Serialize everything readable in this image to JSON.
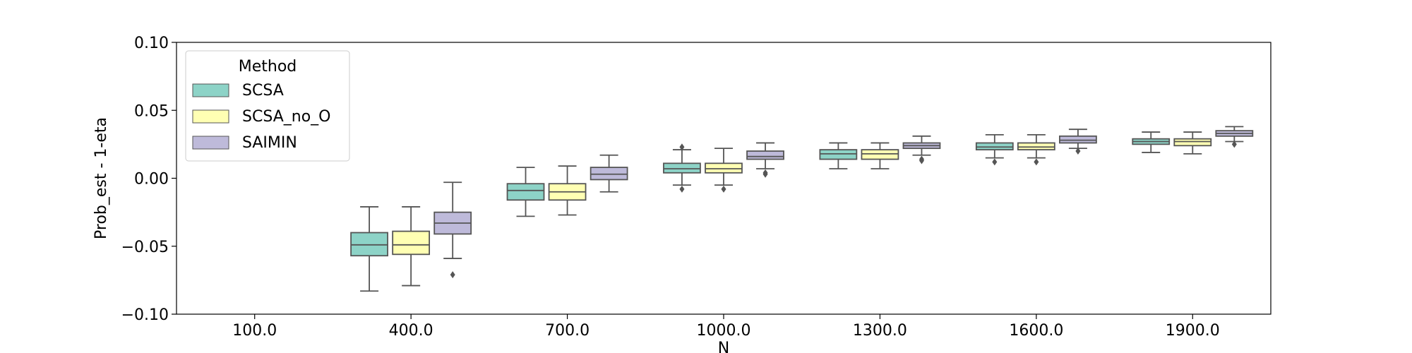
{
  "chart_data": {
    "type": "box",
    "title": "",
    "xlabel": "N",
    "ylabel": "Prob_est - 1-eta",
    "ylim": [
      -0.1,
      0.1
    ],
    "yticks": [
      -0.1,
      -0.05,
      0.0,
      0.05,
      0.1
    ],
    "ytick_labels": [
      "−0.10",
      "−0.05",
      "0.00",
      "0.05",
      "0.10"
    ],
    "categories": [
      "100.0",
      "400.0",
      "700.0",
      "1000.0",
      "1300.0",
      "1600.0",
      "1900.0"
    ],
    "legend": {
      "title": "Method",
      "placement": "upper-left"
    },
    "grid": false,
    "series": [
      {
        "name": "SCSA",
        "color": "#8dd3c7",
        "boxes": [
          null,
          {
            "whislo": -0.083,
            "q1": -0.057,
            "med": -0.049,
            "q3": -0.04,
            "whishi": -0.021,
            "fliers": []
          },
          {
            "whislo": -0.028,
            "q1": -0.016,
            "med": -0.009,
            "q3": -0.004,
            "whishi": 0.008,
            "fliers": []
          },
          {
            "whislo": -0.005,
            "q1": 0.004,
            "med": 0.007,
            "q3": 0.011,
            "whishi": 0.021,
            "fliers": [
              -0.008,
              0.023
            ]
          },
          {
            "whislo": 0.007,
            "q1": 0.014,
            "med": 0.018,
            "q3": 0.021,
            "whishi": 0.026,
            "fliers": []
          },
          {
            "whislo": 0.015,
            "q1": 0.021,
            "med": 0.023,
            "q3": 0.026,
            "whishi": 0.032,
            "fliers": [
              0.012
            ]
          },
          {
            "whislo": 0.019,
            "q1": 0.025,
            "med": 0.027,
            "q3": 0.029,
            "whishi": 0.034,
            "fliers": []
          }
        ]
      },
      {
        "name": "SCSA_no_O",
        "color": "#ffffb3",
        "boxes": [
          null,
          {
            "whislo": -0.079,
            "q1": -0.056,
            "med": -0.049,
            "q3": -0.039,
            "whishi": -0.021,
            "fliers": []
          },
          {
            "whislo": -0.027,
            "q1": -0.016,
            "med": -0.01,
            "q3": -0.004,
            "whishi": 0.009,
            "fliers": []
          },
          {
            "whislo": -0.005,
            "q1": 0.004,
            "med": 0.007,
            "q3": 0.011,
            "whishi": 0.022,
            "fliers": [
              -0.008
            ]
          },
          {
            "whislo": 0.007,
            "q1": 0.014,
            "med": 0.018,
            "q3": 0.021,
            "whishi": 0.026,
            "fliers": []
          },
          {
            "whislo": 0.015,
            "q1": 0.021,
            "med": 0.023,
            "q3": 0.026,
            "whishi": 0.032,
            "fliers": [
              0.012
            ]
          },
          {
            "whislo": 0.018,
            "q1": 0.024,
            "med": 0.027,
            "q3": 0.029,
            "whishi": 0.034,
            "fliers": []
          }
        ]
      },
      {
        "name": "SAIMIN",
        "color": "#bebada",
        "boxes": [
          null,
          {
            "whislo": -0.059,
            "q1": -0.041,
            "med": -0.033,
            "q3": -0.025,
            "whishi": -0.003,
            "fliers": [
              -0.071
            ]
          },
          {
            "whislo": -0.01,
            "q1": -0.001,
            "med": 0.003,
            "q3": 0.008,
            "whishi": 0.017,
            "fliers": []
          },
          {
            "whislo": 0.007,
            "q1": 0.014,
            "med": 0.016,
            "q3": 0.02,
            "whishi": 0.026,
            "fliers": [
              0.003,
              0.004
            ]
          },
          {
            "whislo": 0.017,
            "q1": 0.022,
            "med": 0.024,
            "q3": 0.026,
            "whishi": 0.031,
            "fliers": [
              0.013,
              0.014
            ]
          },
          {
            "whislo": 0.022,
            "q1": 0.026,
            "med": 0.028,
            "q3": 0.031,
            "whishi": 0.036,
            "fliers": [
              0.02
            ]
          },
          {
            "whislo": 0.027,
            "q1": 0.031,
            "med": 0.033,
            "q3": 0.035,
            "whishi": 0.038,
            "fliers": [
              0.025
            ]
          }
        ]
      }
    ]
  }
}
